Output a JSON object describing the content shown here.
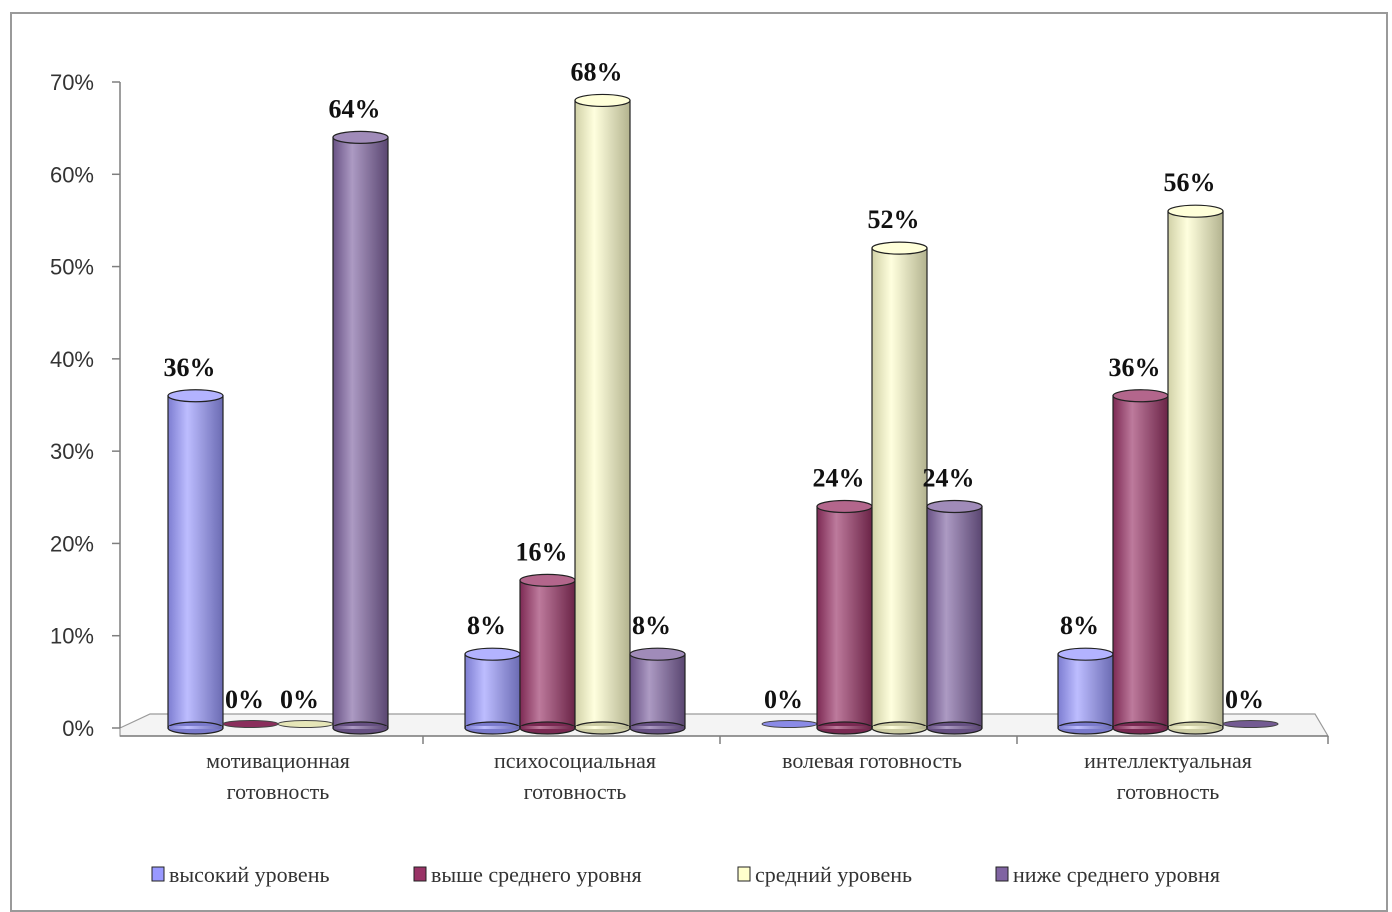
{
  "chart_data": {
    "type": "bar",
    "categories": [
      [
        "мотивационная",
        "готовность"
      ],
      [
        "психосоциальная",
        "готовность"
      ],
      [
        "волевая готовность"
      ],
      [
        "интеллектуальная",
        "готовность"
      ]
    ],
    "series": [
      {
        "name": "высокий уровень",
        "values": [
          36,
          8,
          0,
          8
        ],
        "color": "#9999ff"
      },
      {
        "name": "выше среднего уровня",
        "values": [
          0,
          16,
          24,
          36
        ],
        "color": "#993366"
      },
      {
        "name": "средний уровень",
        "values": [
          0,
          68,
          52,
          56
        ],
        "color": "#ffffcc"
      },
      {
        "name": "ниже среднего уровня",
        "values": [
          64,
          8,
          24,
          0
        ],
        "color": "#8064a2"
      }
    ],
    "data_labels": [
      [
        "36%",
        "8%",
        "0%",
        "8%"
      ],
      [
        "0%",
        "16%",
        "24%",
        "36%"
      ],
      [
        "0%",
        "68%",
        "52%",
        "56%"
      ],
      [
        "64%",
        "8%",
        "24%",
        "0%"
      ]
    ],
    "y_ticks": [
      "0%",
      "10%",
      "20%",
      "30%",
      "40%",
      "50%",
      "60%",
      "70%"
    ],
    "ylim": [
      0,
      70
    ],
    "legend_position": "bottom",
    "grid": false
  }
}
